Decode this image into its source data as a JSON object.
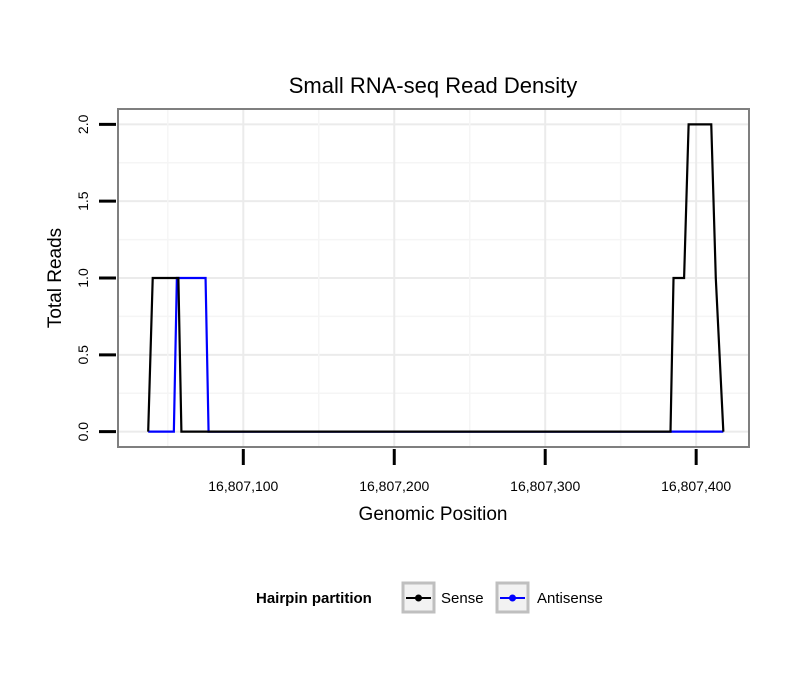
{
  "chart_data": {
    "type": "line",
    "title": "Small RNA-seq Read Density",
    "xlabel": "Genomic Position",
    "ylabel": "Total Reads",
    "xlim": [
      16807017,
      16807435
    ],
    "ylim": [
      -0.1,
      2.1
    ],
    "x_ticks": [
      16807100,
      16807200,
      16807300,
      16807400
    ],
    "x_tick_labels": [
      "16,807,100",
      "16,807,200",
      "16,807,300",
      "16,807,400"
    ],
    "y_ticks": [
      0.0,
      0.5,
      1.0,
      1.5,
      2.0
    ],
    "y_tick_labels": [
      "0.0",
      "0.5",
      "1.0",
      "1.5",
      "2.0"
    ],
    "grid": true,
    "legend": {
      "title": "Hairpin partition",
      "position": "bottom",
      "entries": [
        "Sense",
        "Antisense"
      ]
    },
    "series": [
      {
        "name": "Sense",
        "color": "#000000",
        "x": [
          16807037,
          16807040,
          16807057,
          16807059,
          16807064,
          16807066,
          16807383,
          16807385,
          16807392,
          16807395,
          16807410,
          16807413,
          16807418
        ],
        "y": [
          0,
          1,
          1,
          0,
          0,
          0,
          0,
          1,
          1,
          2,
          2,
          1,
          0
        ]
      },
      {
        "name": "Antisense",
        "color": "#0000ff",
        "x": [
          16807037,
          16807054,
          16807056,
          16807075,
          16807077,
          16807395,
          16807418
        ],
        "y": [
          0,
          0,
          1,
          1,
          0,
          0,
          0
        ]
      }
    ]
  }
}
